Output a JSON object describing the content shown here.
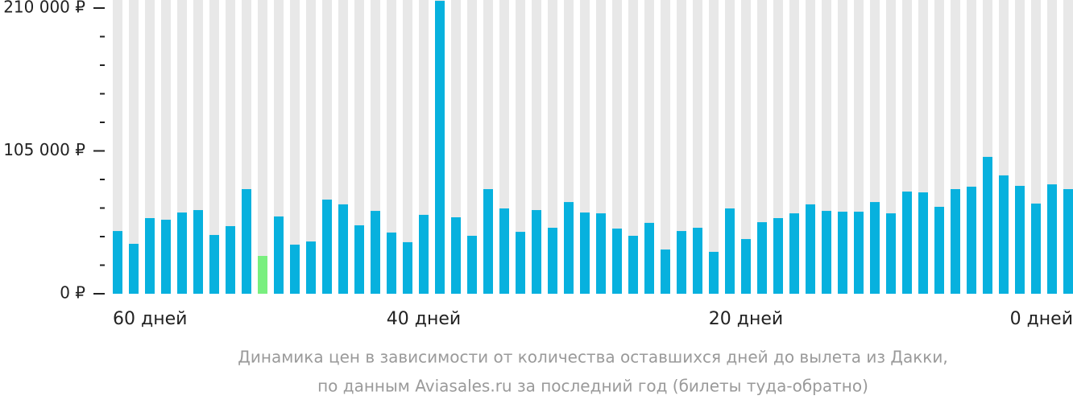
{
  "chart_data": {
    "type": "bar",
    "caption": [
      "Динамика цен в зависимости от количества оставшихся дней до вылета из Дакки,",
      "по данным Aviasales.ru за последний год (билеты туда-обратно)"
    ],
    "categories": [
      "60 дней",
      null,
      null,
      null,
      null,
      null,
      null,
      null,
      null,
      null,
      null,
      null,
      null,
      null,
      null,
      null,
      null,
      null,
      null,
      "40 дней",
      null,
      null,
      null,
      null,
      null,
      null,
      null,
      null,
      null,
      null,
      null,
      null,
      null,
      null,
      null,
      null,
      null,
      null,
      null,
      "20 дней",
      null,
      null,
      null,
      null,
      null,
      null,
      null,
      null,
      null,
      null,
      null,
      null,
      null,
      null,
      null,
      null,
      null,
      null,
      null,
      "0 дней"
    ],
    "values": [
      46100,
      36700,
      55600,
      54400,
      59700,
      61500,
      43200,
      49700,
      76900,
      27800,
      56800,
      36100,
      38400,
      69200,
      65700,
      50300,
      60900,
      45000,
      37900,
      58000,
      215300,
      56200,
      42600,
      76900,
      62700,
      45500,
      61500,
      48500,
      67400,
      59700,
      59100,
      47900,
      42600,
      52100,
      32500,
      46100,
      48500,
      30800,
      62700,
      40200,
      52600,
      55600,
      59100,
      65700,
      60900,
      60300,
      60300,
      67400,
      59100,
      75100,
      74500,
      63900,
      76900,
      78700,
      100600,
      87000,
      79300,
      66300,
      80400,
      76900
    ],
    "colors": [
      "#07b1de",
      "#07b1de",
      "#07b1de",
      "#07b1de",
      "#07b1de",
      "#07b1de",
      "#07b1de",
      "#07b1de",
      "#07b1de",
      "#79ef7f",
      "#07b1de",
      "#07b1de",
      "#07b1de",
      "#07b1de",
      "#07b1de",
      "#07b1de",
      "#07b1de",
      "#07b1de",
      "#07b1de",
      "#07b1de",
      "#07b1de",
      "#07b1de",
      "#07b1de",
      "#07b1de",
      "#07b1de",
      "#07b1de",
      "#07b1de",
      "#07b1de",
      "#07b1de",
      "#07b1de",
      "#07b1de",
      "#07b1de",
      "#07b1de",
      "#07b1de",
      "#07b1de",
      "#07b1de",
      "#07b1de",
      "#07b1de",
      "#07b1de",
      "#07b1de",
      "#07b1de",
      "#07b1de",
      "#07b1de",
      "#07b1de",
      "#07b1de",
      "#07b1de",
      "#07b1de",
      "#07b1de",
      "#07b1de",
      "#07b1de",
      "#07b1de",
      "#07b1de",
      "#07b1de",
      "#07b1de",
      "#07b1de",
      "#07b1de",
      "#07b1de",
      "#07b1de",
      "#07b1de",
      "#07b1de"
    ],
    "ylim": [
      0,
      210000
    ],
    "yticks": [
      {
        "value": 0,
        "label": "0 ₽"
      },
      {
        "value": 105000,
        "label": "105 000 ₽"
      },
      {
        "value": 210000,
        "label": "210 000 ₽"
      }
    ],
    "yminor": [
      21000,
      42000,
      63000,
      84000,
      126000,
      147000,
      168000,
      189000
    ]
  }
}
